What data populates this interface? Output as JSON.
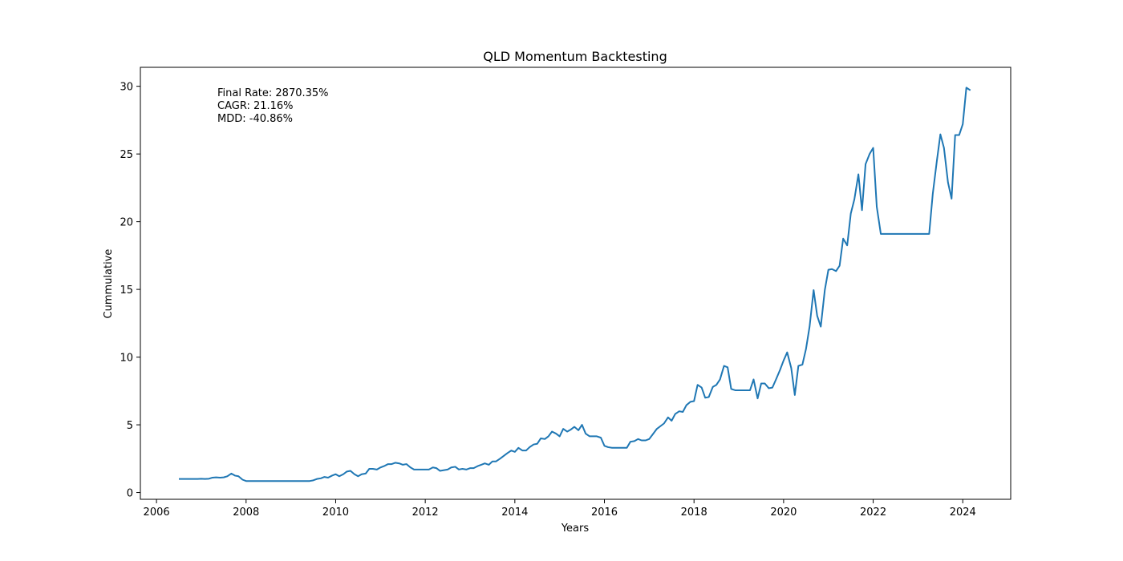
{
  "chart_data": {
    "type": "line",
    "title": "QLD Momentum Backtesting",
    "xlabel": "Years",
    "ylabel": "Cummulative",
    "xlim": [
      2005.64,
      2025.07
    ],
    "ylim": [
      -0.5,
      31.4
    ],
    "xticks": [
      2006,
      2008,
      2010,
      2012,
      2014,
      2016,
      2018,
      2020,
      2022,
      2024
    ],
    "xtick_labels": [
      "2006",
      "2008",
      "2010",
      "2012",
      "2014",
      "2016",
      "2018",
      "2020",
      "2022",
      "2024"
    ],
    "yticks": [
      0,
      5,
      10,
      15,
      20,
      25,
      30
    ],
    "ytick_labels": [
      "0",
      "5",
      "10",
      "15",
      "20",
      "25",
      "30"
    ],
    "grid": false,
    "annotations": [
      "Final Rate: 2870.35%",
      "CAGR: 21.16%",
      "MDD: -40.86%"
    ],
    "series": [
      {
        "name": "Cummulative",
        "color": "#1f77b4",
        "x": [
          2006.5,
          2006.58,
          2006.67,
          2006.75,
          2006.83,
          2006.92,
          2007.0,
          2007.08,
          2007.17,
          2007.25,
          2007.33,
          2007.42,
          2007.5,
          2007.58,
          2007.67,
          2007.75,
          2007.83,
          2007.92,
          2008.0,
          2008.08,
          2008.17,
          2008.25,
          2008.5,
          2008.75,
          2009.0,
          2009.25,
          2009.42,
          2009.5,
          2009.58,
          2009.67,
          2009.75,
          2009.83,
          2009.92,
          2010.0,
          2010.08,
          2010.17,
          2010.25,
          2010.33,
          2010.42,
          2010.5,
          2010.58,
          2010.67,
          2010.75,
          2010.83,
          2010.92,
          2011.0,
          2011.08,
          2011.17,
          2011.25,
          2011.33,
          2011.42,
          2011.5,
          2011.58,
          2011.67,
          2011.75,
          2011.83,
          2011.92,
          2012.0,
          2012.08,
          2012.17,
          2012.25,
          2012.33,
          2012.42,
          2012.5,
          2012.58,
          2012.67,
          2012.75,
          2012.83,
          2012.92,
          2013.0,
          2013.08,
          2013.17,
          2013.25,
          2013.33,
          2013.42,
          2013.5,
          2013.58,
          2013.67,
          2013.75,
          2013.83,
          2013.92,
          2014.0,
          2014.08,
          2014.17,
          2014.25,
          2014.33,
          2014.42,
          2014.5,
          2014.58,
          2014.67,
          2014.75,
          2014.83,
          2014.92,
          2015.0,
          2015.08,
          2015.17,
          2015.25,
          2015.33,
          2015.42,
          2015.5,
          2015.58,
          2015.67,
          2015.75,
          2015.83,
          2015.92,
          2016.0,
          2016.08,
          2016.17,
          2016.25,
          2016.33,
          2016.42,
          2016.5,
          2016.58,
          2016.67,
          2016.75,
          2016.83,
          2016.92,
          2017.0,
          2017.08,
          2017.17,
          2017.25,
          2017.33,
          2017.42,
          2017.5,
          2017.58,
          2017.67,
          2017.75,
          2017.83,
          2017.92,
          2018.0,
          2018.08,
          2018.17,
          2018.25,
          2018.33,
          2018.42,
          2018.5,
          2018.58,
          2018.67,
          2018.75,
          2018.83,
          2018.92,
          2019.0,
          2019.08,
          2019.17,
          2019.25,
          2019.33,
          2019.42,
          2019.5,
          2019.58,
          2019.67,
          2019.75,
          2019.83,
          2019.92,
          2020.0,
          2020.08,
          2020.17,
          2020.25,
          2020.33,
          2020.42,
          2020.5,
          2020.58,
          2020.67,
          2020.75,
          2020.83,
          2020.92,
          2021.0,
          2021.08,
          2021.17,
          2021.25,
          2021.33,
          2021.42,
          2021.5,
          2021.58,
          2021.67,
          2021.75,
          2021.83,
          2021.92,
          2022.0,
          2022.08,
          2022.17,
          2022.5,
          2022.75,
          2023.0,
          2023.25,
          2023.33,
          2023.42,
          2023.5,
          2023.58,
          2023.67,
          2023.75,
          2023.83,
          2023.92,
          2024.0,
          2024.08,
          2024.17
        ],
        "y": [
          1.0,
          1.0,
          1.0,
          1.0,
          1.0,
          1.0,
          1.02,
          1.0,
          1.02,
          1.1,
          1.12,
          1.1,
          1.12,
          1.2,
          1.4,
          1.25,
          1.2,
          0.95,
          0.85,
          0.85,
          0.85,
          0.85,
          0.85,
          0.85,
          0.85,
          0.85,
          0.85,
          0.9,
          1.0,
          1.05,
          1.15,
          1.1,
          1.25,
          1.35,
          1.2,
          1.35,
          1.55,
          1.6,
          1.35,
          1.2,
          1.35,
          1.4,
          1.75,
          1.75,
          1.7,
          1.85,
          1.95,
          2.1,
          2.1,
          2.2,
          2.15,
          2.05,
          2.1,
          1.85,
          1.7,
          1.7,
          1.7,
          1.7,
          1.7,
          1.85,
          1.8,
          1.6,
          1.65,
          1.7,
          1.85,
          1.9,
          1.7,
          1.75,
          1.7,
          1.8,
          1.8,
          1.95,
          2.05,
          2.15,
          2.05,
          2.3,
          2.3,
          2.5,
          2.7,
          2.9,
          3.1,
          3.0,
          3.3,
          3.1,
          3.1,
          3.35,
          3.55,
          3.6,
          4.0,
          3.95,
          4.15,
          4.5,
          4.35,
          4.15,
          4.7,
          4.5,
          4.65,
          4.85,
          4.6,
          5.0,
          4.35,
          4.15,
          4.15,
          4.15,
          4.05,
          3.45,
          3.35,
          3.3,
          3.3,
          3.3,
          3.3,
          3.3,
          3.75,
          3.8,
          3.95,
          3.85,
          3.85,
          3.95,
          4.3,
          4.7,
          4.9,
          5.1,
          5.55,
          5.3,
          5.8,
          6.0,
          5.95,
          6.45,
          6.7,
          6.75,
          7.95,
          7.75,
          7.0,
          7.05,
          7.8,
          7.95,
          8.35,
          9.35,
          9.25,
          7.65,
          7.55,
          7.55,
          7.55,
          7.55,
          7.55,
          8.35,
          6.95,
          8.05,
          8.05,
          7.7,
          7.75,
          8.35,
          9.05,
          9.75,
          10.35,
          9.2,
          7.2,
          9.35,
          9.45,
          10.6,
          12.25,
          14.95,
          13.05,
          12.25,
          14.95,
          16.45,
          16.5,
          16.35,
          16.75,
          18.75,
          18.25,
          20.6,
          21.65,
          23.5,
          20.85,
          24.25,
          25.0,
          25.45,
          21.1,
          19.1,
          19.1,
          19.1,
          19.1,
          19.1,
          22.05,
          24.45,
          26.45,
          25.45,
          22.9,
          21.7,
          26.4,
          26.4,
          27.2,
          29.9,
          29.7
        ]
      }
    ]
  }
}
